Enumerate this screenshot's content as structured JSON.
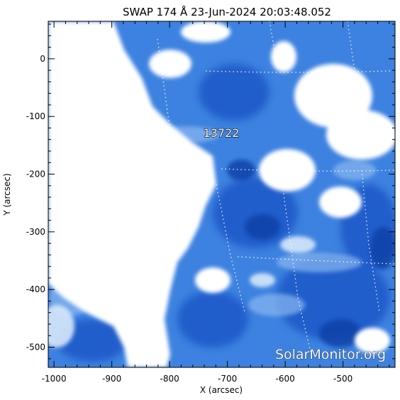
{
  "title": "SWAP 174 Å 23-Jun-2024 20:03:48.052",
  "axes": {
    "xlabel": "X (arcsec)",
    "ylabel": "Y (arcsec)",
    "xlim": [
      -1010,
      -410
    ],
    "ylim": [
      -535,
      65
    ],
    "xticks": [
      "-1000",
      "-900",
      "-800",
      "-700",
      "-600",
      "-500"
    ],
    "yticks": [
      "0",
      "-100",
      "-200",
      "-300",
      "-400",
      "-500"
    ]
  },
  "region_label": "13722",
  "watermark": "SolarMonitor.org",
  "colors": {
    "bright": "#ffffff",
    "mid": "#4a8ee6",
    "dark": "#1a58c8",
    "deep": "#0e3fa6"
  }
}
